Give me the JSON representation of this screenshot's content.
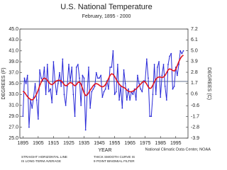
{
  "chart_data": {
    "type": "line",
    "title": "U.S. National Temperature",
    "subtitle": "February, 1895 - 2000",
    "xlabel": "YEAR",
    "ylabel": "DEGREES (F)",
    "y2label": "DEGREES (C)",
    "x": [
      1895,
      1896,
      1897,
      1898,
      1899,
      1900,
      1901,
      1902,
      1903,
      1904,
      1905,
      1906,
      1907,
      1908,
      1909,
      1910,
      1911,
      1912,
      1913,
      1914,
      1915,
      1916,
      1917,
      1918,
      1919,
      1920,
      1921,
      1922,
      1923,
      1924,
      1925,
      1926,
      1927,
      1928,
      1929,
      1930,
      1931,
      1932,
      1933,
      1934,
      1935,
      1936,
      1937,
      1938,
      1939,
      1940,
      1941,
      1942,
      1943,
      1944,
      1945,
      1946,
      1947,
      1948,
      1949,
      1950,
      1951,
      1952,
      1953,
      1954,
      1955,
      1956,
      1957,
      1958,
      1959,
      1960,
      1961,
      1962,
      1963,
      1964,
      1965,
      1966,
      1967,
      1968,
      1969,
      1970,
      1971,
      1972,
      1973,
      1974,
      1975,
      1976,
      1977,
      1978,
      1979,
      1980,
      1981,
      1982,
      1983,
      1984,
      1985,
      1986,
      1987,
      1988,
      1989,
      1990,
      1991,
      1992,
      1993,
      1994,
      1995,
      1996,
      1997,
      1998,
      1999,
      2000
    ],
    "series": [
      {
        "color": "#2a2ad8",
        "markers": true,
        "line_width": 1,
        "values": [
          29.0,
          36.0,
          35.0,
          36.5,
          27.0,
          32.0,
          30.5,
          32.5,
          35.0,
          32.0,
          28.5,
          37.5,
          36.0,
          35.5,
          38.0,
          33.0,
          38.5,
          33.5,
          34.0,
          31.5,
          39.0,
          35.5,
          33.0,
          35.0,
          37.0,
          34.5,
          39.5,
          33.0,
          31.0,
          34.5,
          38.5,
          35.5,
          38.0,
          33.0,
          29.0,
          38.0,
          38.5,
          36.0,
          31.0,
          36.5,
          36.0,
          26.5,
          33.0,
          38.0,
          30.5,
          33.5,
          34.0,
          34.5,
          37.0,
          36.0,
          36.0,
          36.5,
          32.5,
          33.5,
          34.0,
          35.5,
          34.0,
          38.0,
          38.0,
          41.0,
          33.0,
          33.5,
          38.5,
          32.0,
          34.5,
          30.5,
          37.5,
          35.0,
          32.0,
          34.0,
          32.0,
          33.5,
          33.0,
          34.0,
          32.0,
          36.5,
          35.0,
          34.0,
          33.5,
          35.5,
          35.5,
          39.5,
          36.0,
          29.0,
          29.0,
          33.0,
          38.5,
          33.0,
          38.0,
          39.0,
          32.5,
          36.5,
          38.5,
          34.5,
          32.0,
          38.5,
          40.0,
          40.5,
          34.0,
          34.5,
          38.0,
          36.5,
          38.5,
          41.0,
          40.5,
          41.0
        ]
      },
      {
        "color": "#e0141e",
        "markers": false,
        "line_width": 1.6,
        "values": [
          33.6,
          33.4,
          33.0,
          32.6,
          32.3,
          32.1,
          32.0,
          32.2,
          32.6,
          33.1,
          33.8,
          34.6,
          35.3,
          35.8,
          36.0,
          35.9,
          35.6,
          35.2,
          34.9,
          34.8,
          35.0,
          35.3,
          35.5,
          35.6,
          35.6,
          35.5,
          35.2,
          34.8,
          34.6,
          34.7,
          35.0,
          35.2,
          35.1,
          34.8,
          34.6,
          34.8,
          35.2,
          35.3,
          34.9,
          34.1,
          33.3,
          32.8,
          32.9,
          33.3,
          33.8,
          34.2,
          34.6,
          34.9,
          35.0,
          34.9,
          34.7,
          34.5,
          34.4,
          34.5,
          34.8,
          35.3,
          35.9,
          36.5,
          36.8,
          36.7,
          36.3,
          35.8,
          35.3,
          34.9,
          34.6,
          34.4,
          34.3,
          34.1,
          33.8,
          33.6,
          33.5,
          33.5,
          33.6,
          33.8,
          34.0,
          34.3,
          34.6,
          34.9,
          35.2,
          35.4,
          35.3,
          34.9,
          34.4,
          34.1,
          34.2,
          34.7,
          35.3,
          35.8,
          36.1,
          36.2,
          36.2,
          36.1,
          36.2,
          36.5,
          37.0,
          37.5,
          37.7,
          37.6,
          37.4,
          37.3,
          37.6,
          38.3,
          39.0,
          39.6,
          40.0,
          40.2
        ]
      }
    ],
    "reference_line": {
      "value": 35.4,
      "color": "#4a5a78"
    },
    "xlim": [
      1893,
      2003
    ],
    "xticks": [
      1895,
      1905,
      1915,
      1925,
      1935,
      1945,
      1955,
      1965,
      1975,
      1985,
      1995
    ],
    "ylim": [
      25,
      45
    ],
    "yticks": [
      {
        "value": 25,
        "label": "25.0"
      },
      {
        "value": 27,
        "label": "27.0"
      },
      {
        "value": 29,
        "label": "29.0"
      },
      {
        "value": 31,
        "label": "31.0"
      },
      {
        "value": 33,
        "label": "33.0"
      },
      {
        "value": 35,
        "label": "35.0"
      },
      {
        "value": 37,
        "label": "37.0"
      },
      {
        "value": 39,
        "label": "39.0"
      },
      {
        "value": 41,
        "label": "41.0"
      },
      {
        "value": 43,
        "label": "43.0"
      },
      {
        "value": 45,
        "label": "45.0"
      }
    ],
    "y2lim": [
      -3.9,
      7.2
    ],
    "y2ticks": [
      -3.9,
      -2.8,
      -1.7,
      -0.6,
      0.6,
      1.7,
      2.8,
      3.9,
      {
        "value": 5.0,
        "label": "5.0"
      },
      6.1,
      7.2
    ],
    "grid": false,
    "annotations": [
      "STRAIGHT HORIZONTAL LINE",
      "IS LONG-TERM AVERAGE",
      "THICK SMOOTH CURVE IS",
      "9 POINT BINOMIAL FILTER"
    ],
    "source": "National Climatic Data Center, NOAA"
  }
}
